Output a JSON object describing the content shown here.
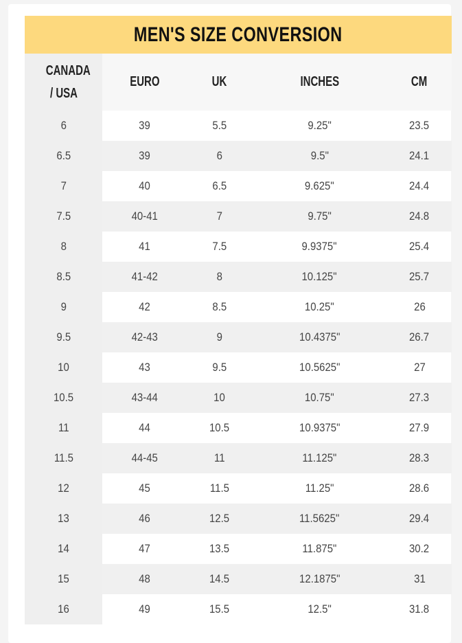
{
  "title": "MEN'S SIZE CONVERSION",
  "headers": [
    "CANADA / USA",
    "EURO",
    "UK",
    "INCHES",
    "CM"
  ],
  "rows": [
    [
      "6",
      "39",
      "5.5",
      "9.25\"",
      "23.5"
    ],
    [
      "6.5",
      "39",
      "6",
      "9.5\"",
      "24.1"
    ],
    [
      "7",
      "40",
      "6.5",
      "9.625\"",
      "24.4"
    ],
    [
      "7.5",
      "40-41",
      "7",
      "9.75\"",
      "24.8"
    ],
    [
      "8",
      "41",
      "7.5",
      "9.9375\"",
      "25.4"
    ],
    [
      "8.5",
      "41-42",
      "8",
      "10.125\"",
      "25.7"
    ],
    [
      "9",
      "42",
      "8.5",
      "10.25\"",
      "26"
    ],
    [
      "9.5",
      "42-43",
      "9",
      "10.4375\"",
      "26.7"
    ],
    [
      "10",
      "43",
      "9.5",
      "10.5625\"",
      "27"
    ],
    [
      "10.5",
      "43-44",
      "10",
      "10.75\"",
      "27.3"
    ],
    [
      "11",
      "44",
      "10.5",
      "10.9375\"",
      "27.9"
    ],
    [
      "11.5",
      "44-45",
      "11",
      "11.125\"",
      "28.3"
    ],
    [
      "12",
      "45",
      "11.5",
      "11.25\"",
      "28.6"
    ],
    [
      "13",
      "46",
      "12.5",
      "11.5625\"",
      "29.4"
    ],
    [
      "14",
      "47",
      "13.5",
      "11.875\"",
      "30.2"
    ],
    [
      "15",
      "48",
      "14.5",
      "12.1875\"",
      "31"
    ],
    [
      "16",
      "49",
      "15.5",
      "12.5\"",
      "31.8"
    ]
  ],
  "colors": {
    "title_bg": "#fdd97e",
    "stripe": "#f0f0f0"
  }
}
